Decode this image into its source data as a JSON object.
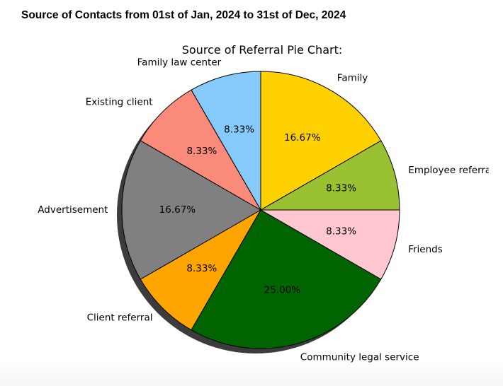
{
  "page": {
    "heading": "Source of Contacts from 01st of Jan, 2024 to 31st of Dec, 2024"
  },
  "chart_data": {
    "type": "pie",
    "title": "Source of Referral Pie Chart:",
    "start_angle_deg": 90,
    "direction": "clockwise",
    "shadow": true,
    "slices": [
      {
        "label": "Family",
        "value": 16.67,
        "pct_label": "16.67%",
        "color": "#FFD100"
      },
      {
        "label": "Employee referral",
        "value": 8.33,
        "pct_label": "8.33%",
        "color": "#9AC132"
      },
      {
        "label": "Friends",
        "value": 8.33,
        "pct_label": "8.33%",
        "color": "#FFC8D0"
      },
      {
        "label": "Community legal service",
        "value": 25.0,
        "pct_label": "25.00%",
        "color": "#006400"
      },
      {
        "label": "Client referral",
        "value": 8.33,
        "pct_label": "8.33%",
        "color": "#FFA500"
      },
      {
        "label": "Advertisement",
        "value": 16.67,
        "pct_label": "16.67%",
        "color": "#808080"
      },
      {
        "label": "Existing client",
        "value": 8.33,
        "pct_label": "8.33%",
        "color": "#FA8A79"
      },
      {
        "label": "Family law center",
        "value": 8.33,
        "pct_label": "8.33%",
        "color": "#86CAFB"
      }
    ]
  }
}
